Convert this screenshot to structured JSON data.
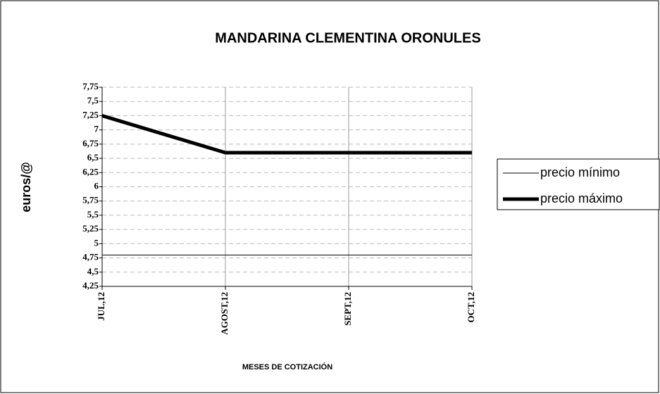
{
  "chart_data": {
    "type": "line",
    "title": "MANDARINA CLEMENTINA ORONULES",
    "ylabel": "euros/@",
    "xlabel": "MESES DE COTIZACIÓN",
    "categories": [
      "JUL,12",
      "AGOST,12",
      "SEPT,12",
      "OCT,12"
    ],
    "series": [
      {
        "name": "precio mínimo",
        "color": "#000000",
        "width": 1,
        "values": [
          4.8,
          4.8,
          4.8,
          4.8
        ]
      },
      {
        "name": "precio máximo",
        "color": "#000000",
        "width": 5,
        "values": [
          7.25,
          6.6,
          6.6,
          6.6
        ]
      }
    ],
    "ylim": [
      4.25,
      7.75
    ],
    "yticks": [
      {
        "value": 4.25,
        "label": "4,25"
      },
      {
        "value": 4.5,
        "label": "4,5"
      },
      {
        "value": 4.75,
        "label": "4,75"
      },
      5,
      {
        "value": 5.25,
        "label": "5,25"
      },
      {
        "value": 5.5,
        "label": "5,5"
      },
      {
        "value": 5.75,
        "label": "5,75"
      },
      6,
      {
        "value": 6.25,
        "label": "6,25"
      },
      {
        "value": 6.5,
        "label": "6,5"
      },
      {
        "value": 6.75,
        "label": "6,75"
      },
      7,
      {
        "value": 7.25,
        "label": "7,25"
      },
      {
        "value": 7.5,
        "label": "7,5"
      },
      {
        "value": 7.75,
        "label": "7,75"
      }
    ],
    "grid": true,
    "legend": "right"
  }
}
